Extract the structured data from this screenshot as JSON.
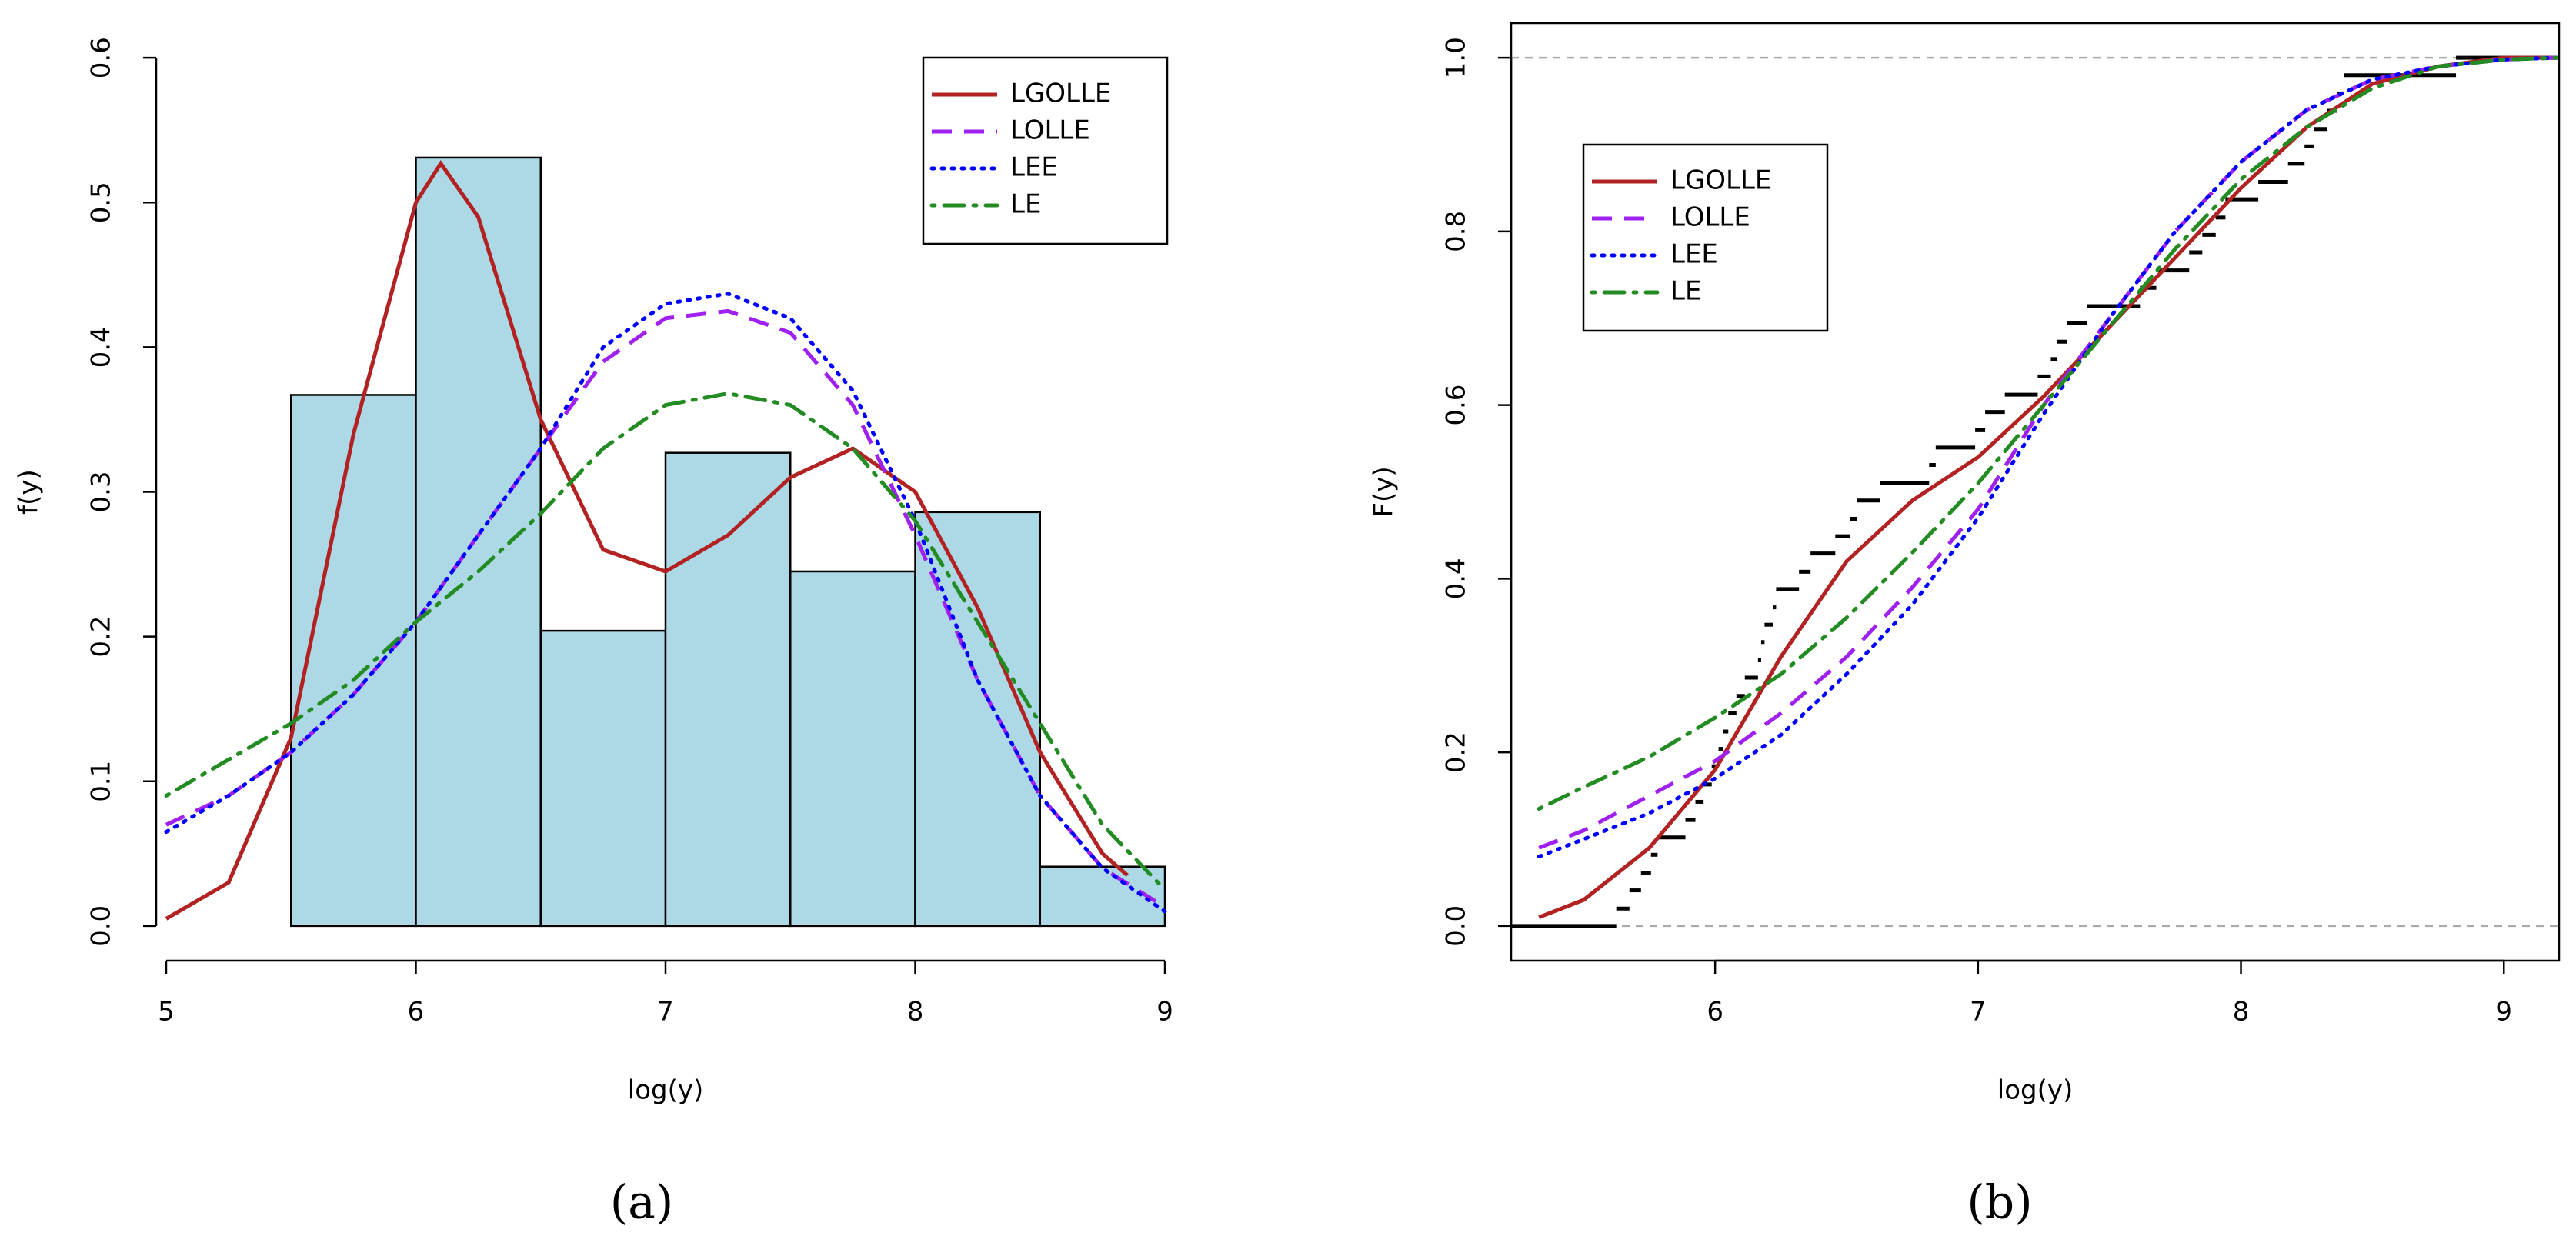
{
  "chart_data": [
    {
      "type": "histogram",
      "caption": "(a)",
      "xlabel": "log(y)",
      "ylabel": "f(y)",
      "bins": [
        5.5,
        6,
        6.5,
        7,
        7.5,
        8,
        8.5,
        9
      ],
      "counts": [
        0.367,
        0.531,
        0.204,
        0.327,
        0.245,
        0.286,
        0.041
      ],
      "bar_color": "#add8e6",
      "xlim": [
        4.96,
        9.04
      ],
      "ylim": [
        -0.024,
        0.624
      ],
      "xticks": [
        5,
        6,
        7,
        8,
        9
      ],
      "yticks": [
        {
          "value": 0,
          "label": "0.0"
        },
        0.1,
        0.2,
        0.3,
        0.4,
        0.5,
        0.6
      ],
      "legend": "topright",
      "series": [
        {
          "name": "LGOLLE",
          "color": "#b22222",
          "linestyle": "solid",
          "x": [
            5,
            5.25,
            5.5,
            5.75,
            6,
            6.1,
            6.25,
            6.5,
            6.75,
            7,
            7.25,
            7.5,
            7.75,
            8,
            8.25,
            8.5,
            8.75,
            8.85
          ],
          "values": [
            0.005,
            0.03,
            0.13,
            0.34,
            0.5,
            0.527,
            0.49,
            0.35,
            0.26,
            0.245,
            0.27,
            0.31,
            0.33,
            0.3,
            0.22,
            0.12,
            0.05,
            0.035
          ]
        },
        {
          "name": "LOLLE",
          "color": "#a020f0",
          "linestyle": "dashed",
          "x": [
            5,
            5.25,
            5.5,
            5.75,
            6,
            6.25,
            6.5,
            6.75,
            7,
            7.25,
            7.5,
            7.75,
            8,
            8.25,
            8.5,
            8.75,
            9
          ],
          "values": [
            0.07,
            0.09,
            0.12,
            0.16,
            0.21,
            0.27,
            0.33,
            0.39,
            0.42,
            0.425,
            0.41,
            0.36,
            0.27,
            0.17,
            0.09,
            0.04,
            0.013
          ]
        },
        {
          "name": "LEE",
          "color": "#0000ff",
          "linestyle": "dotted",
          "x": [
            5,
            5.25,
            5.5,
            5.75,
            6,
            6.25,
            6.5,
            6.75,
            7,
            7.25,
            7.5,
            7.75,
            8,
            8.25,
            8.5,
            8.75,
            9
          ],
          "values": [
            0.065,
            0.09,
            0.12,
            0.16,
            0.21,
            0.27,
            0.33,
            0.4,
            0.43,
            0.437,
            0.42,
            0.37,
            0.28,
            0.17,
            0.09,
            0.04,
            0.01
          ]
        },
        {
          "name": "LE",
          "color": "#228b22",
          "linestyle": "dotdash",
          "x": [
            5,
            5.25,
            5.5,
            5.75,
            6,
            6.25,
            6.5,
            6.75,
            7,
            7.25,
            7.5,
            7.75,
            8,
            8.25,
            8.5,
            8.75,
            9
          ],
          "values": [
            0.09,
            0.115,
            0.14,
            0.17,
            0.21,
            0.245,
            0.285,
            0.33,
            0.36,
            0.368,
            0.36,
            0.33,
            0.28,
            0.21,
            0.14,
            0.07,
            0.025
          ]
        }
      ]
    },
    {
      "type": "ecdf",
      "caption": "(b)",
      "xlabel": "log(y)",
      "ylabel": "F(y)",
      "box": true,
      "xlim": [
        5.224,
        9.21
      ],
      "ylim": [
        -0.04,
        1.04
      ],
      "xticks": [
        6,
        7,
        8,
        9
      ],
      "yticks": [
        {
          "value": 0,
          "label": "0.0"
        },
        0.2,
        0.4,
        0.6,
        0.8,
        {
          "value": 1,
          "label": "1.0"
        }
      ],
      "reference_lines": [
        0,
        1
      ],
      "reference_color": "#aaaaaa",
      "legend": "topleft",
      "steps": {
        "color": "#000000",
        "x": [
          5.224,
          5.624,
          5.674,
          5.718,
          5.756,
          5.781,
          5.887,
          5.925,
          5.956,
          5.987,
          6.013,
          6.031,
          6.05,
          6.081,
          6.113,
          6.163,
          6.175,
          6.188,
          6.219,
          6.232,
          6.319,
          6.363,
          6.457,
          6.513,
          6.539,
          6.626,
          6.814,
          6.839,
          6.989,
          7.027,
          7.102,
          7.227,
          7.277,
          7.302,
          7.34,
          7.415,
          7.616,
          7.678,
          7.803,
          7.853,
          7.904,
          7.941,
          8.066,
          8.179,
          8.242,
          8.279,
          8.329,
          8.367,
          8.392,
          8.818
        ],
        "values": [
          0,
          0.02,
          0.041,
          0.061,
          0.082,
          0.102,
          0.122,
          0.143,
          0.163,
          0.184,
          0.204,
          0.224,
          0.245,
          0.265,
          0.286,
          0.306,
          0.327,
          0.347,
          0.367,
          0.388,
          0.408,
          0.429,
          0.449,
          0.469,
          0.49,
          0.51,
          0.531,
          0.551,
          0.571,
          0.592,
          0.612,
          0.633,
          0.653,
          0.673,
          0.694,
          0.714,
          0.735,
          0.755,
          0.776,
          0.796,
          0.816,
          0.837,
          0.857,
          0.878,
          0.898,
          0.918,
          0.939,
          0.959,
          0.98,
          1.0
        ]
      },
      "series": [
        {
          "name": "LGOLLE",
          "color": "#b22222",
          "linestyle": "solid",
          "x": [
            5.33,
            5.5,
            5.75,
            6,
            6.25,
            6.5,
            6.75,
            7,
            7.25,
            7.5,
            7.75,
            8,
            8.25,
            8.5,
            8.75,
            9,
            9.2
          ],
          "values": [
            0.01,
            0.03,
            0.09,
            0.18,
            0.31,
            0.42,
            0.49,
            0.54,
            0.61,
            0.69,
            0.77,
            0.85,
            0.92,
            0.97,
            0.99,
            1.0,
            1.0
          ]
        },
        {
          "name": "LOLLE",
          "color": "#a020f0",
          "linestyle": "dashed",
          "x": [
            5.33,
            5.5,
            5.75,
            6,
            6.25,
            6.5,
            6.75,
            7,
            7.25,
            7.5,
            7.75,
            8,
            8.25,
            8.5,
            8.75,
            9,
            9.2
          ],
          "values": [
            0.09,
            0.11,
            0.15,
            0.19,
            0.245,
            0.31,
            0.39,
            0.48,
            0.6,
            0.7,
            0.8,
            0.88,
            0.94,
            0.975,
            0.99,
            0.998,
            1.0
          ]
        },
        {
          "name": "LEE",
          "color": "#0000ff",
          "linestyle": "dotted",
          "x": [
            5.33,
            5.5,
            5.75,
            6,
            6.25,
            6.5,
            6.75,
            7,
            7.25,
            7.5,
            7.75,
            8,
            8.25,
            8.5,
            8.75,
            9,
            9.2
          ],
          "values": [
            0.08,
            0.1,
            0.13,
            0.17,
            0.22,
            0.29,
            0.37,
            0.47,
            0.59,
            0.7,
            0.8,
            0.88,
            0.94,
            0.975,
            0.99,
            0.998,
            1.0
          ]
        },
        {
          "name": "LE",
          "color": "#228b22",
          "linestyle": "dotdash",
          "x": [
            5.33,
            5.5,
            5.75,
            6,
            6.25,
            6.5,
            6.75,
            7,
            7.25,
            7.5,
            7.75,
            8,
            8.25,
            8.5,
            8.75,
            9,
            9.2
          ],
          "values": [
            0.135,
            0.16,
            0.195,
            0.24,
            0.29,
            0.355,
            0.43,
            0.51,
            0.6,
            0.69,
            0.78,
            0.86,
            0.92,
            0.965,
            0.99,
            0.998,
            1.0
          ]
        }
      ]
    }
  ]
}
